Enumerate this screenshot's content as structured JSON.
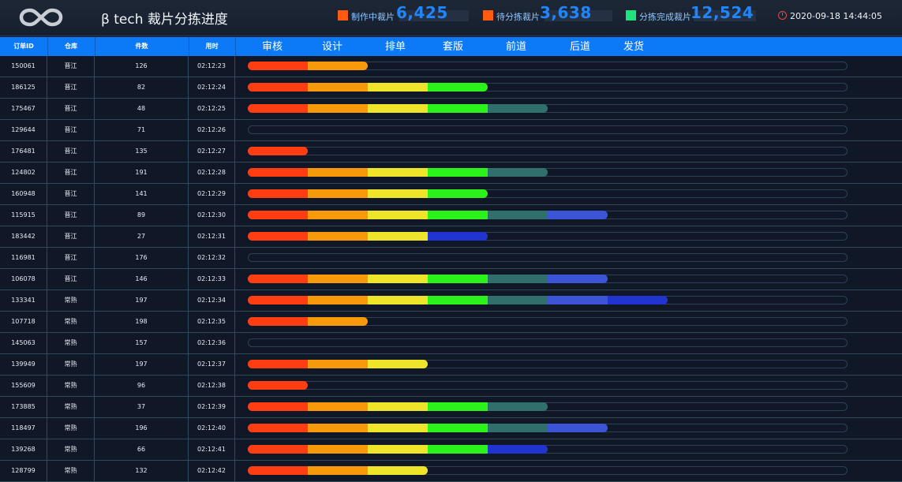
{
  "header": {
    "title": "β tech 裁片分拣进度",
    "stats": [
      {
        "label": "制作中裁片",
        "value": "6,425",
        "color": "#ff5a12"
      },
      {
        "label": "待分拣裁片",
        "value": "3,638",
        "color": "#ff5a12"
      },
      {
        "label": "分拣完成裁片",
        "value": "12,524",
        "color": "#1fe27c"
      }
    ],
    "datetime": "2020-09-18 14:44:05",
    "clock_icon": "clock-icon",
    "logo_icon": "infinity-logo-icon"
  },
  "table": {
    "columns": [
      "订单ID",
      "仓库",
      "件数",
      "用时"
    ],
    "stages": [
      "审核",
      "设计",
      "排单",
      "套版",
      "前道",
      "后道",
      "发货"
    ],
    "stage_colors": [
      "#ff3d12",
      "#f69a0c",
      "#eee42a",
      "#2bf21a",
      "#2f706d",
      "#3c55d6",
      "#2234cf"
    ],
    "rows": [
      {
        "id": "150061",
        "warehouse": "晋江",
        "count": "126",
        "time": "02:12:23",
        "stages": [
          "#ff3d12",
          "#f69a0c"
        ]
      },
      {
        "id": "186125",
        "warehouse": "晋江",
        "count": "82",
        "time": "02:12:24",
        "stages": [
          "#ff3d12",
          "#f69a0c",
          "#eee42a",
          "#2bf21a"
        ]
      },
      {
        "id": "175467",
        "warehouse": "晋江",
        "count": "48",
        "time": "02:12:25",
        "stages": [
          "#ff3d12",
          "#f69a0c",
          "#eee42a",
          "#2bf21a",
          "#2f706d"
        ]
      },
      {
        "id": "129644",
        "warehouse": "晋江",
        "count": "71",
        "time": "02:12:26",
        "stages": []
      },
      {
        "id": "176481",
        "warehouse": "晋江",
        "count": "135",
        "time": "02:12:27",
        "stages": [
          "#ff3d12"
        ]
      },
      {
        "id": "124802",
        "warehouse": "晋江",
        "count": "191",
        "time": "02:12:28",
        "stages": [
          "#ff3d12",
          "#f69a0c",
          "#eee42a",
          "#2bf21a",
          "#2f706d"
        ]
      },
      {
        "id": "160948",
        "warehouse": "晋江",
        "count": "141",
        "time": "02:12:29",
        "stages": [
          "#ff3d12",
          "#f69a0c",
          "#eee42a",
          "#2bf21a"
        ]
      },
      {
        "id": "115915",
        "warehouse": "晋江",
        "count": "89",
        "time": "02:12:30",
        "stages": [
          "#ff3d12",
          "#f69a0c",
          "#eee42a",
          "#2bf21a",
          "#2f706d",
          "#3c55d6"
        ]
      },
      {
        "id": "183442",
        "warehouse": "晋江",
        "count": "27",
        "time": "02:12:31",
        "stages": [
          "#ff3d12",
          "#f69a0c",
          "#eee42a",
          "#2234cf"
        ]
      },
      {
        "id": "116981",
        "warehouse": "晋江",
        "count": "176",
        "time": "02:12:32",
        "stages": []
      },
      {
        "id": "106078",
        "warehouse": "晋江",
        "count": "146",
        "time": "02:12:33",
        "stages": [
          "#ff3d12",
          "#f69a0c",
          "#eee42a",
          "#2bf21a",
          "#2f706d",
          "#3c55d6"
        ]
      },
      {
        "id": "133341",
        "warehouse": "常熟",
        "count": "197",
        "time": "02:12:34",
        "stages": [
          "#ff3d12",
          "#f69a0c",
          "#eee42a",
          "#2bf21a",
          "#2f706d",
          "#3c55d6",
          "#2234cf"
        ]
      },
      {
        "id": "107718",
        "warehouse": "常熟",
        "count": "198",
        "time": "02:12:35",
        "stages": [
          "#ff3d12",
          "#f69a0c"
        ]
      },
      {
        "id": "145063",
        "warehouse": "常熟",
        "count": "157",
        "time": "02:12:36",
        "stages": []
      },
      {
        "id": "139949",
        "warehouse": "常熟",
        "count": "197",
        "time": "02:12:37",
        "stages": [
          "#ff3d12",
          "#f69a0c",
          "#eee42a"
        ]
      },
      {
        "id": "155609",
        "warehouse": "常熟",
        "count": "96",
        "time": "02:12:38",
        "stages": [
          "#ff3d12"
        ]
      },
      {
        "id": "173885",
        "warehouse": "常熟",
        "count": "37",
        "time": "02:12:39",
        "stages": [
          "#ff3d12",
          "#f69a0c",
          "#eee42a",
          "#2bf21a",
          "#2f706d"
        ]
      },
      {
        "id": "118497",
        "warehouse": "常熟",
        "count": "196",
        "time": "02:12:40",
        "stages": [
          "#ff3d12",
          "#f69a0c",
          "#eee42a",
          "#2bf21a",
          "#2f706d",
          "#3c55d6"
        ]
      },
      {
        "id": "139268",
        "warehouse": "常熟",
        "count": "66",
        "time": "02:12:41",
        "stages": [
          "#ff3d12",
          "#f69a0c",
          "#eee42a",
          "#2bf21a",
          "#2234cf"
        ]
      },
      {
        "id": "128799",
        "warehouse": "常熟",
        "count": "132",
        "time": "02:12:42",
        "stages": [
          "#ff3d12",
          "#f69a0c",
          "#eee42a"
        ]
      }
    ]
  }
}
